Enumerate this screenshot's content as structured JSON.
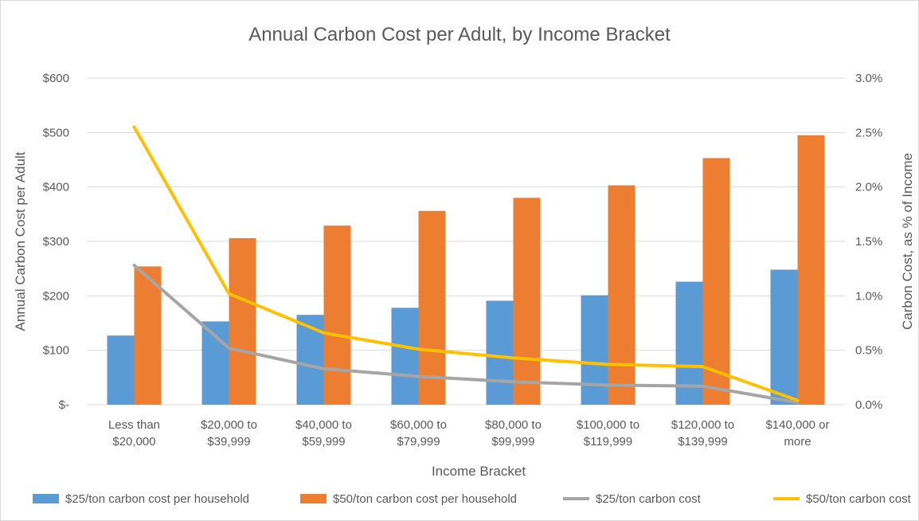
{
  "chart_data": {
    "type": "bar",
    "title": "Annual Carbon Cost per Adult, by Income Bracket",
    "xlabel": "Income Bracket",
    "ylabel": "Annual Carbon Cost per Adult",
    "y2label": "Carbon Cost, as % of Income",
    "categories": [
      [
        "Less than",
        "$20,000"
      ],
      [
        "$20,000 to",
        "$39,999"
      ],
      [
        "$40,000 to",
        "$59,999"
      ],
      [
        "$60,000 to",
        "$79,999"
      ],
      [
        "$80,000 to",
        "$99,999"
      ],
      [
        "$100,000 to",
        "$119,999"
      ],
      [
        "$120,000 to",
        "$139,999"
      ],
      [
        "$140,000 or",
        "more"
      ]
    ],
    "ylim": [
      0,
      600
    ],
    "y_ticks": [
      0,
      100,
      200,
      300,
      400,
      500,
      600
    ],
    "y_tick_labels": [
      "$-",
      "$100",
      "$200",
      "$300",
      "$400",
      "$500",
      "$600"
    ],
    "y2lim": [
      0,
      3.0
    ],
    "y2_ticks": [
      0,
      0.5,
      1.0,
      1.5,
      2.0,
      2.5,
      3.0
    ],
    "y2_tick_labels": [
      "0.0%",
      "0.5%",
      "1.0%",
      "1.5%",
      "2.0%",
      "2.5%",
      "3.0%"
    ],
    "grid": true,
    "legend_position": "bottom",
    "series": [
      {
        "name": "$25/ton carbon cost per household",
        "type": "bar",
        "axis": "left",
        "color": "#5b9bd5",
        "values": [
          127,
          153,
          165,
          178,
          191,
          201,
          226,
          248
        ]
      },
      {
        "name": "$50/ton carbon cost per household",
        "type": "bar",
        "axis": "left",
        "color": "#ed7d31",
        "values": [
          254,
          306,
          329,
          356,
          380,
          403,
          453,
          495
        ]
      },
      {
        "name": "$25/ton carbon cost",
        "type": "line",
        "axis": "right",
        "color": "#a5a5a5",
        "values": [
          1.28,
          0.52,
          0.33,
          0.26,
          0.21,
          0.18,
          0.17,
          0.02
        ]
      },
      {
        "name": "$50/ton carbon cost",
        "type": "line",
        "axis": "right",
        "color": "#ffc000",
        "values": [
          2.55,
          1.02,
          0.66,
          0.51,
          0.43,
          0.37,
          0.35,
          0.04
        ]
      }
    ]
  }
}
